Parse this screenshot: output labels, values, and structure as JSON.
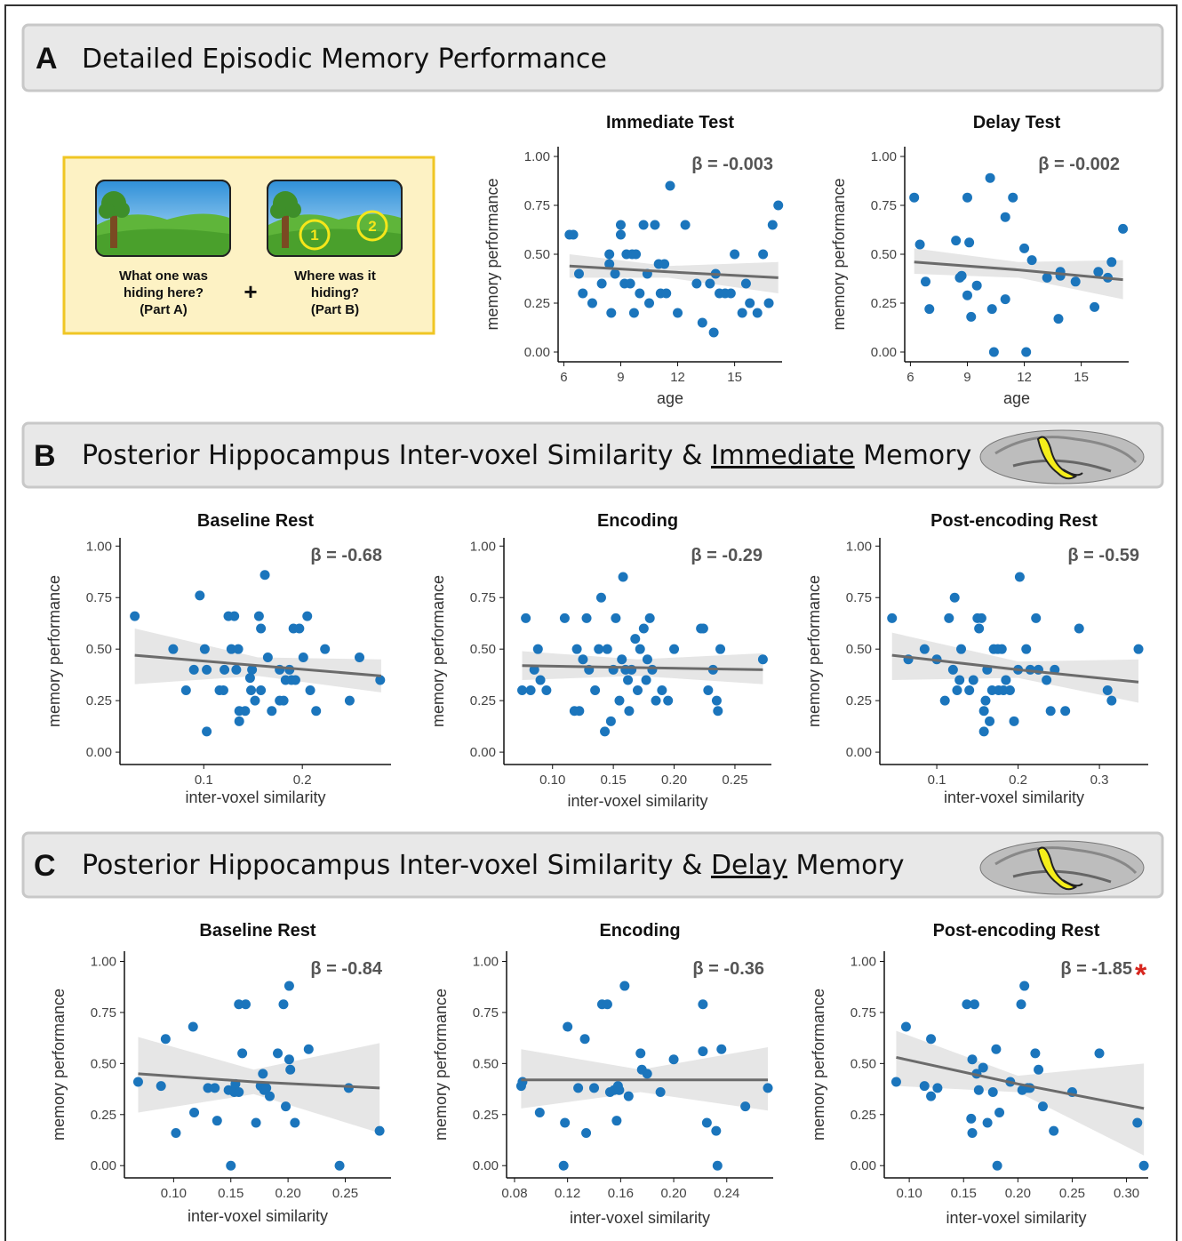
{
  "panels": [
    {
      "letter": "A",
      "title": "Detailed Episodic Memory Performance"
    },
    {
      "letter": "B",
      "title_parts": [
        "Posterior Hippocampus Inter-voxel Similarity & ",
        "Immediate",
        " Memory"
      ]
    },
    {
      "letter": "C",
      "title_parts": [
        "Posterior Hippocampus Inter-voxel Similarity & ",
        "Delay",
        " Memory"
      ]
    }
  ],
  "illustration": {
    "part_a": [
      "What one was",
      "hiding here?",
      "(Part A)"
    ],
    "plus": "+",
    "part_b": [
      "Where was it",
      "hiding?",
      "(Part B)"
    ],
    "markers": [
      "1",
      "2"
    ]
  },
  "chart_data": [
    {
      "type": "scatter",
      "title": "Immediate Test",
      "x_label": "age",
      "y_label": "memory performance",
      "annotation": "β = -0.003",
      "color": "#1b75bc",
      "x": [
        6.3,
        6.5,
        6.8,
        7.0,
        7.5,
        8.0,
        8.4,
        8.4,
        8.5,
        8.7,
        9.0,
        9.0,
        9.2,
        9.3,
        9.5,
        9.6,
        9.7,
        9.8,
        10.0,
        10.2,
        10.4,
        10.5,
        10.8,
        11.0,
        11.1,
        11.3,
        11.4,
        11.6,
        12.0,
        12.4,
        13.0,
        13.3,
        13.7,
        13.9,
        14.0,
        14.2,
        14.5,
        14.8,
        15.0,
        15.4,
        15.6,
        15.8,
        16.2,
        16.5,
        16.8,
        17.0,
        17.3
      ],
      "values": [
        0.6,
        0.6,
        0.4,
        0.3,
        0.25,
        0.35,
        0.5,
        0.45,
        0.2,
        0.4,
        0.65,
        0.6,
        0.35,
        0.5,
        0.35,
        0.5,
        0.2,
        0.5,
        0.3,
        0.65,
        0.4,
        0.25,
        0.65,
        0.45,
        0.3,
        0.45,
        0.3,
        0.85,
        0.2,
        0.65,
        0.35,
        0.15,
        0.35,
        0.1,
        0.4,
        0.3,
        0.3,
        0.3,
        0.5,
        0.2,
        0.35,
        0.25,
        0.2,
        0.5,
        0.25,
        0.65,
        0.75
      ],
      "fit": {
        "x": [
          6.3,
          11.5,
          17.3
        ],
        "y": [
          0.44,
          0.41,
          0.38
        ],
        "lower": [
          0.38,
          0.38,
          0.3
        ],
        "upper": [
          0.5,
          0.44,
          0.46
        ]
      },
      "xlim": [
        5.7,
        17.5
      ],
      "ylim": [
        -0.05,
        1.05
      ],
      "xticks": [
        6,
        9,
        12,
        15
      ],
      "yticks": [
        {
          "value": 0,
          "label": "0.00"
        },
        {
          "value": 0.25,
          "label": "0.25"
        },
        {
          "value": 0.5,
          "label": "0.50"
        },
        {
          "value": 0.75,
          "label": "0.75"
        },
        {
          "value": 1,
          "label": "1.00"
        }
      ]
    },
    {
      "type": "scatter",
      "title": "Delay Test",
      "x_label": "age",
      "y_label": "memory performance",
      "annotation": "β = -0.002",
      "color": "#1b75bc",
      "x": [
        6.2,
        6.5,
        6.8,
        7.0,
        8.4,
        8.6,
        8.7,
        9.0,
        9.1,
        9.2,
        9.5,
        9.0,
        10.2,
        10.3,
        10.4,
        11.0,
        11.0,
        11.4,
        12.0,
        12.1,
        12.4,
        13.2,
        13.8,
        13.9,
        13.9,
        14.7,
        15.7,
        15.9,
        16.4,
        16.6,
        17.2
      ],
      "values": [
        0.79,
        0.55,
        0.36,
        0.22,
        0.57,
        0.38,
        0.39,
        0.79,
        0.56,
        0.18,
        0.34,
        0.29,
        0.89,
        0.22,
        0.0,
        0.69,
        0.27,
        0.79,
        0.53,
        0.0,
        0.47,
        0.38,
        0.17,
        0.41,
        0.39,
        0.36,
        0.23,
        0.41,
        0.38,
        0.46,
        0.63
      ],
      "fit": {
        "x": [
          6.2,
          11.7,
          17.2
        ],
        "y": [
          0.46,
          0.42,
          0.37
        ],
        "lower": [
          0.4,
          0.38,
          0.27
        ],
        "upper": [
          0.53,
          0.46,
          0.47
        ]
      },
      "xlim": [
        5.7,
        17.5
      ],
      "ylim": [
        -0.05,
        1.05
      ],
      "xticks": [
        6,
        9,
        12,
        15
      ],
      "yticks": [
        {
          "value": 0,
          "label": "0.00"
        },
        {
          "value": 0.25,
          "label": "0.25"
        },
        {
          "value": 0.5,
          "label": "0.50"
        },
        {
          "value": 0.75,
          "label": "0.75"
        },
        {
          "value": 1,
          "label": "1.00"
        }
      ]
    },
    {
      "type": "scatter",
      "title": "Baseline Rest",
      "x_label": "inter-voxel similarity",
      "y_label": "memory performance",
      "annotation": "β = -0.68",
      "color": "#1b75bc",
      "x": [
        0.03,
        0.069,
        0.082,
        0.09,
        0.096,
        0.101,
        0.103,
        0.103,
        0.116,
        0.12,
        0.121,
        0.125,
        0.128,
        0.131,
        0.135,
        0.133,
        0.136,
        0.136,
        0.142,
        0.147,
        0.148,
        0.149,
        0.152,
        0.156,
        0.158,
        0.158,
        0.162,
        0.165,
        0.169,
        0.177,
        0.177,
        0.181,
        0.183,
        0.187,
        0.189,
        0.191,
        0.193,
        0.197,
        0.201,
        0.205,
        0.208,
        0.214,
        0.223,
        0.248,
        0.258,
        0.279
      ],
      "values": [
        0.66,
        0.5,
        0.3,
        0.4,
        0.76,
        0.5,
        0.4,
        0.1,
        0.3,
        0.3,
        0.4,
        0.66,
        0.5,
        0.66,
        0.5,
        0.4,
        0.2,
        0.15,
        0.2,
        0.36,
        0.3,
        0.4,
        0.25,
        0.66,
        0.6,
        0.3,
        0.86,
        0.46,
        0.2,
        0.4,
        0.25,
        0.25,
        0.35,
        0.4,
        0.35,
        0.6,
        0.35,
        0.6,
        0.46,
        0.66,
        0.3,
        0.2,
        0.5,
        0.25,
        0.46,
        0.35
      ],
      "fit": {
        "x": [
          0.03,
          0.155,
          0.28
        ],
        "y": [
          0.47,
          0.42,
          0.37
        ],
        "lower": [
          0.33,
          0.37,
          0.29
        ],
        "upper": [
          0.6,
          0.46,
          0.45
        ]
      },
      "xlim": [
        0.015,
        0.29
      ],
      "ylim": [
        -0.06,
        1.04
      ],
      "xticks": [
        0.1,
        0.2
      ],
      "yticks": [
        {
          "value": 0,
          "label": "0.00"
        },
        {
          "value": 0.25,
          "label": "0.25"
        },
        {
          "value": 0.5,
          "label": "0.50"
        },
        {
          "value": 0.75,
          "label": "0.75"
        },
        {
          "value": 1,
          "label": "1.00"
        }
      ]
    },
    {
      "type": "scatter",
      "title": "Encoding",
      "x_label": "inter-voxel similarity",
      "y_label": "memory performance",
      "annotation": "β = -0.29",
      "color": "#1b75bc",
      "x": [
        0.075,
        0.078,
        0.082,
        0.085,
        0.088,
        0.09,
        0.095,
        0.11,
        0.118,
        0.12,
        0.122,
        0.125,
        0.128,
        0.13,
        0.135,
        0.138,
        0.14,
        0.143,
        0.145,
        0.148,
        0.15,
        0.152,
        0.155,
        0.157,
        0.158,
        0.16,
        0.162,
        0.163,
        0.165,
        0.168,
        0.17,
        0.172,
        0.175,
        0.177,
        0.178,
        0.18,
        0.182,
        0.185,
        0.19,
        0.195,
        0.2,
        0.222,
        0.224,
        0.228,
        0.232,
        0.235,
        0.236,
        0.238,
        0.273
      ],
      "values": [
        0.3,
        0.65,
        0.3,
        0.4,
        0.5,
        0.35,
        0.3,
        0.65,
        0.2,
        0.5,
        0.2,
        0.45,
        0.65,
        0.4,
        0.3,
        0.5,
        0.75,
        0.1,
        0.5,
        0.15,
        0.4,
        0.65,
        0.25,
        0.45,
        0.85,
        0.4,
        0.35,
        0.2,
        0.4,
        0.55,
        0.3,
        0.5,
        0.6,
        0.35,
        0.45,
        0.65,
        0.4,
        0.25,
        0.3,
        0.25,
        0.5,
        0.6,
        0.6,
        0.3,
        0.4,
        0.25,
        0.2,
        0.5,
        0.45
      ],
      "fit": {
        "x": [
          0.075,
          0.17,
          0.273
        ],
        "y": [
          0.42,
          0.41,
          0.4
        ],
        "lower": [
          0.35,
          0.37,
          0.33
        ],
        "upper": [
          0.49,
          0.45,
          0.48
        ]
      },
      "xlim": [
        0.06,
        0.28
      ],
      "ylim": [
        -0.06,
        1.04
      ],
      "xticks": [
        {
          "value": 0.1,
          "label": "0.10"
        },
        {
          "value": 0.15,
          "label": "0.15"
        },
        {
          "value": 0.2,
          "label": "0.20"
        },
        {
          "value": 0.25,
          "label": "0.25"
        }
      ],
      "yticks": [
        {
          "value": 0,
          "label": "0.00"
        },
        {
          "value": 0.25,
          "label": "0.25"
        },
        {
          "value": 0.5,
          "label": "0.50"
        },
        {
          "value": 0.75,
          "label": "0.75"
        },
        {
          "value": 1,
          "label": "1.00"
        }
      ]
    },
    {
      "type": "scatter",
      "title": "Post-encoding Rest",
      "x_label": "inter-voxel similarity",
      "y_label": "memory performance",
      "annotation": "β = -0.59",
      "color": "#1b75bc",
      "x": [
        0.045,
        0.065,
        0.085,
        0.1,
        0.11,
        0.115,
        0.12,
        0.122,
        0.125,
        0.128,
        0.13,
        0.14,
        0.145,
        0.15,
        0.152,
        0.155,
        0.158,
        0.158,
        0.16,
        0.162,
        0.165,
        0.168,
        0.17,
        0.175,
        0.176,
        0.18,
        0.182,
        0.185,
        0.19,
        0.195,
        0.2,
        0.202,
        0.21,
        0.215,
        0.222,
        0.225,
        0.235,
        0.24,
        0.245,
        0.258,
        0.275,
        0.31,
        0.315,
        0.348
      ],
      "values": [
        0.65,
        0.45,
        0.5,
        0.45,
        0.25,
        0.65,
        0.4,
        0.75,
        0.3,
        0.35,
        0.5,
        0.3,
        0.35,
        0.65,
        0.6,
        0.65,
        0.2,
        0.1,
        0.25,
        0.4,
        0.15,
        0.3,
        0.5,
        0.5,
        0.3,
        0.5,
        0.3,
        0.35,
        0.3,
        0.15,
        0.4,
        0.85,
        0.5,
        0.4,
        0.65,
        0.4,
        0.35,
        0.2,
        0.4,
        0.2,
        0.6,
        0.3,
        0.25,
        0.5
      ],
      "fit": {
        "x": [
          0.045,
          0.2,
          0.348
        ],
        "y": [
          0.47,
          0.4,
          0.34
        ],
        "lower": [
          0.35,
          0.36,
          0.24
        ],
        "upper": [
          0.58,
          0.44,
          0.45
        ]
      },
      "xlim": [
        0.03,
        0.36
      ],
      "ylim": [
        -0.06,
        1.04
      ],
      "xticks": [
        0.1,
        0.2,
        0.3
      ],
      "yticks": [
        {
          "value": 0,
          "label": "0.00"
        },
        {
          "value": 0.25,
          "label": "0.25"
        },
        {
          "value": 0.5,
          "label": "0.50"
        },
        {
          "value": 0.75,
          "label": "0.75"
        },
        {
          "value": 1,
          "label": "1.00"
        }
      ]
    },
    {
      "type": "scatter",
      "title": "Baseline Rest",
      "x_label": "inter-voxel similarity",
      "y_label": "memory performance",
      "annotation": "β = -0.84",
      "color": "#1b75bc",
      "x": [
        0.069,
        0.089,
        0.093,
        0.102,
        0.117,
        0.118,
        0.13,
        0.136,
        0.138,
        0.148,
        0.15,
        0.153,
        0.154,
        0.157,
        0.157,
        0.16,
        0.163,
        0.172,
        0.176,
        0.178,
        0.179,
        0.181,
        0.184,
        0.191,
        0.196,
        0.198,
        0.201,
        0.201,
        0.202,
        0.206,
        0.218,
        0.245,
        0.253,
        0.28
      ],
      "values": [
        0.41,
        0.39,
        0.62,
        0.16,
        0.68,
        0.26,
        0.38,
        0.38,
        0.22,
        0.37,
        0.0,
        0.36,
        0.4,
        0.36,
        0.79,
        0.55,
        0.79,
        0.21,
        0.39,
        0.45,
        0.37,
        0.38,
        0.34,
        0.55,
        0.79,
        0.29,
        0.52,
        0.88,
        0.47,
        0.21,
        0.57,
        0.0,
        0.38,
        0.17
      ],
      "fit": {
        "x": [
          0.069,
          0.17,
          0.28
        ],
        "y": [
          0.45,
          0.41,
          0.38
        ],
        "lower": [
          0.26,
          0.35,
          0.16
        ],
        "upper": [
          0.63,
          0.47,
          0.6
        ]
      },
      "xlim": [
        0.057,
        0.29
      ],
      "ylim": [
        -0.06,
        1.05
      ],
      "xticks": [
        {
          "value": 0.1,
          "label": "0.10"
        },
        {
          "value": 0.15,
          "label": "0.15"
        },
        {
          "value": 0.2,
          "label": "0.20"
        },
        {
          "value": 0.25,
          "label": "0.25"
        }
      ],
      "yticks": [
        {
          "value": 0,
          "label": "0.00"
        },
        {
          "value": 0.25,
          "label": "0.25"
        },
        {
          "value": 0.5,
          "label": "0.50"
        },
        {
          "value": 0.75,
          "label": "0.75"
        },
        {
          "value": 1,
          "label": "1.00"
        }
      ]
    },
    {
      "type": "scatter",
      "title": "Encoding",
      "x_label": "inter-voxel similarity",
      "y_label": "memory performance",
      "annotation": "β = -0.36",
      "color": "#1b75bc",
      "x": [
        0.085,
        0.086,
        0.099,
        0.117,
        0.118,
        0.12,
        0.128,
        0.133,
        0.134,
        0.14,
        0.146,
        0.15,
        0.152,
        0.155,
        0.157,
        0.158,
        0.159,
        0.163,
        0.166,
        0.175,
        0.176,
        0.18,
        0.19,
        0.2,
        0.222,
        0.222,
        0.225,
        0.232,
        0.233,
        0.236,
        0.254,
        0.271
      ],
      "values": [
        0.39,
        0.41,
        0.26,
        0.0,
        0.21,
        0.68,
        0.38,
        0.62,
        0.16,
        0.38,
        0.79,
        0.79,
        0.36,
        0.37,
        0.22,
        0.39,
        0.37,
        0.88,
        0.34,
        0.55,
        0.47,
        0.45,
        0.36,
        0.52,
        0.79,
        0.56,
        0.21,
        0.17,
        0.0,
        0.57,
        0.29,
        0.38
      ],
      "fit": {
        "x": [
          0.085,
          0.175,
          0.271
        ],
        "y": [
          0.42,
          0.42,
          0.42
        ],
        "lower": [
          0.28,
          0.36,
          0.27
        ],
        "upper": [
          0.57,
          0.47,
          0.58
        ]
      },
      "xlim": [
        0.074,
        0.275
      ],
      "ylim": [
        -0.06,
        1.05
      ],
      "xticks": [
        {
          "value": 0.08,
          "label": "0.08"
        },
        {
          "value": 0.12,
          "label": "0.12"
        },
        {
          "value": 0.16,
          "label": "0.16"
        },
        {
          "value": 0.2,
          "label": "0.20"
        },
        {
          "value": 0.24,
          "label": "0.24"
        }
      ],
      "yticks": [
        {
          "value": 0,
          "label": "0.00"
        },
        {
          "value": 0.25,
          "label": "0.25"
        },
        {
          "value": 0.5,
          "label": "0.50"
        },
        {
          "value": 0.75,
          "label": "0.75"
        },
        {
          "value": 1,
          "label": "1.00"
        }
      ]
    },
    {
      "type": "scatter",
      "title": "Post-encoding Rest",
      "x_label": "inter-voxel similarity",
      "y_label": "memory performance",
      "annotation": "β = -1.85",
      "significance": "*",
      "significance_color": "#d7261e",
      "color": "#1b75bc",
      "x": [
        0.088,
        0.097,
        0.114,
        0.12,
        0.12,
        0.126,
        0.153,
        0.157,
        0.158,
        0.16,
        0.158,
        0.162,
        0.164,
        0.168,
        0.172,
        0.177,
        0.18,
        0.181,
        0.183,
        0.193,
        0.203,
        0.204,
        0.206,
        0.209,
        0.211,
        0.216,
        0.219,
        0.223,
        0.233,
        0.25,
        0.275,
        0.31,
        0.316
      ],
      "values": [
        0.41,
        0.68,
        0.39,
        0.62,
        0.34,
        0.38,
        0.79,
        0.23,
        0.52,
        0.79,
        0.16,
        0.45,
        0.37,
        0.48,
        0.21,
        0.36,
        0.57,
        0.0,
        0.26,
        0.41,
        0.79,
        0.37,
        0.88,
        0.38,
        0.38,
        0.55,
        0.47,
        0.29,
        0.17,
        0.36,
        0.55,
        0.21,
        0.0
      ],
      "fit": {
        "x": [
          0.088,
          0.2,
          0.316
        ],
        "y": [
          0.53,
          0.4,
          0.28
        ],
        "lower": [
          0.39,
          0.36,
          0.05
        ],
        "upper": [
          0.66,
          0.44,
          0.5
        ]
      },
      "xlim": [
        0.077,
        0.32
      ],
      "ylim": [
        -0.06,
        1.05
      ],
      "xticks": [
        {
          "value": 0.1,
          "label": "0.10"
        },
        {
          "value": 0.15,
          "label": "0.15"
        },
        {
          "value": 0.2,
          "label": "0.20"
        },
        {
          "value": 0.25,
          "label": "0.25"
        },
        {
          "value": 0.3,
          "label": "0.30"
        }
      ],
      "yticks": [
        {
          "value": 0,
          "label": "0.00"
        },
        {
          "value": 0.25,
          "label": "0.25"
        },
        {
          "value": 0.5,
          "label": "0.50"
        },
        {
          "value": 0.75,
          "label": "0.75"
        },
        {
          "value": 1,
          "label": "1.00"
        }
      ]
    }
  ]
}
